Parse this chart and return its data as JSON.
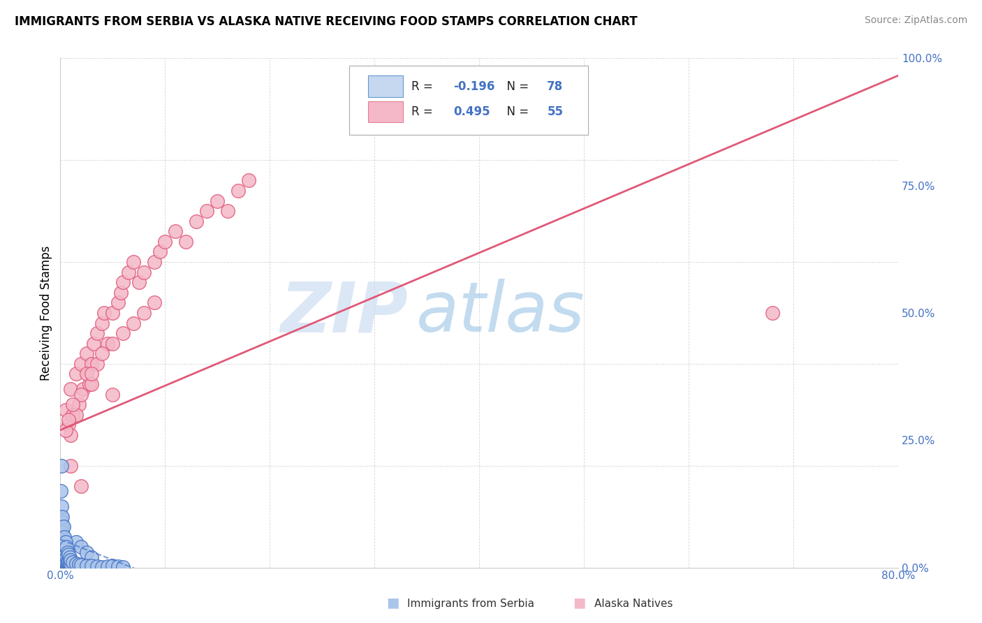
{
  "title": "IMMIGRANTS FROM SERBIA VS ALASKA NATIVE RECEIVING FOOD STAMPS CORRELATION CHART",
  "source": "Source: ZipAtlas.com",
  "ylabel": "Receiving Food Stamps",
  "right_yticks": [
    "0.0%",
    "25.0%",
    "50.0%",
    "75.0%",
    "100.0%"
  ],
  "right_ytick_vals": [
    0.0,
    0.25,
    0.5,
    0.75,
    1.0
  ],
  "xlim": [
    0.0,
    0.8
  ],
  "ylim": [
    0.0,
    1.0
  ],
  "serbia_color": "#4472C4",
  "alaska_color": "#F4728A",
  "serbia_scatter_color": "#aac4ea",
  "alaska_scatter_color": "#f4b8c8",
  "serbia_line_color": "#4472C4",
  "alaska_line_color": "#E05878",
  "watermark_zip": "ZIP",
  "watermark_atlas": "atlas",
  "grid_color": "#cccccc",
  "serbia_R": -0.196,
  "alaska_R": 0.495,
  "serbia_N": 78,
  "alaska_N": 55,
  "alaska_intercept": 0.27,
  "alaska_slope": 0.87,
  "serbia_intercept": 0.055,
  "serbia_slope": -0.8,
  "alaska_points_x": [
    0.005,
    0.008,
    0.01,
    0.012,
    0.015,
    0.018,
    0.02,
    0.022,
    0.025,
    0.028,
    0.03,
    0.032,
    0.035,
    0.04,
    0.042,
    0.045,
    0.05,
    0.055,
    0.058,
    0.06,
    0.065,
    0.07,
    0.075,
    0.08,
    0.09,
    0.095,
    0.1,
    0.11,
    0.12,
    0.13,
    0.14,
    0.15,
    0.16,
    0.17,
    0.18,
    0.01,
    0.015,
    0.02,
    0.025,
    0.03,
    0.035,
    0.04,
    0.05,
    0.06,
    0.07,
    0.08,
    0.09,
    0.005,
    0.008,
    0.012,
    0.68,
    0.01,
    0.02,
    0.03,
    0.05
  ],
  "alaska_points_y": [
    0.31,
    0.28,
    0.35,
    0.3,
    0.38,
    0.32,
    0.4,
    0.35,
    0.42,
    0.36,
    0.4,
    0.44,
    0.46,
    0.48,
    0.5,
    0.44,
    0.5,
    0.52,
    0.54,
    0.56,
    0.58,
    0.6,
    0.56,
    0.58,
    0.6,
    0.62,
    0.64,
    0.66,
    0.64,
    0.68,
    0.7,
    0.72,
    0.7,
    0.74,
    0.76,
    0.26,
    0.3,
    0.34,
    0.38,
    0.36,
    0.4,
    0.42,
    0.44,
    0.46,
    0.48,
    0.5,
    0.52,
    0.27,
    0.29,
    0.32,
    0.5,
    0.2,
    0.16,
    0.38,
    0.34
  ],
  "serbia_points_x": [
    0.0005,
    0.001,
    0.0015,
    0.002,
    0.0025,
    0.003,
    0.0035,
    0.004,
    0.0045,
    0.005,
    0.0055,
    0.006,
    0.0065,
    0.007,
    0.0075,
    0.008,
    0.0085,
    0.009,
    0.0095,
    0.01,
    0.0005,
    0.001,
    0.0015,
    0.002,
    0.0025,
    0.003,
    0.004,
    0.005,
    0.006,
    0.007,
    0.008,
    0.009,
    0.01,
    0.0005,
    0.001,
    0.0015,
    0.002,
    0.003,
    0.004,
    0.005,
    0.006,
    0.007,
    0.008,
    0.009,
    0.01,
    0.0005,
    0.001,
    0.0015,
    0.002,
    0.003,
    0.015,
    0.02,
    0.025,
    0.03,
    0.0005,
    0.001,
    0.002,
    0.003,
    0.004,
    0.005,
    0.006,
    0.007,
    0.008,
    0.009,
    0.01,
    0.012,
    0.015,
    0.018,
    0.02,
    0.025,
    0.03,
    0.035,
    0.04,
    0.045,
    0.05,
    0.055,
    0.06,
    0.001
  ],
  "serbia_points_y": [
    0.02,
    0.015,
    0.01,
    0.008,
    0.012,
    0.006,
    0.01,
    0.008,
    0.005,
    0.004,
    0.006,
    0.008,
    0.01,
    0.012,
    0.015,
    0.018,
    0.008,
    0.01,
    0.005,
    0.003,
    0.05,
    0.04,
    0.035,
    0.03,
    0.025,
    0.02,
    0.015,
    0.012,
    0.01,
    0.008,
    0.006,
    0.004,
    0.002,
    0.08,
    0.06,
    0.05,
    0.04,
    0.035,
    0.03,
    0.025,
    0.02,
    0.015,
    0.012,
    0.01,
    0.008,
    0.1,
    0.09,
    0.08,
    0.07,
    0.06,
    0.05,
    0.04,
    0.03,
    0.02,
    0.15,
    0.12,
    0.1,
    0.08,
    0.06,
    0.05,
    0.04,
    0.03,
    0.025,
    0.02,
    0.015,
    0.01,
    0.008,
    0.006,
    0.005,
    0.004,
    0.003,
    0.002,
    0.001,
    0.002,
    0.003,
    0.002,
    0.001,
    0.2
  ]
}
